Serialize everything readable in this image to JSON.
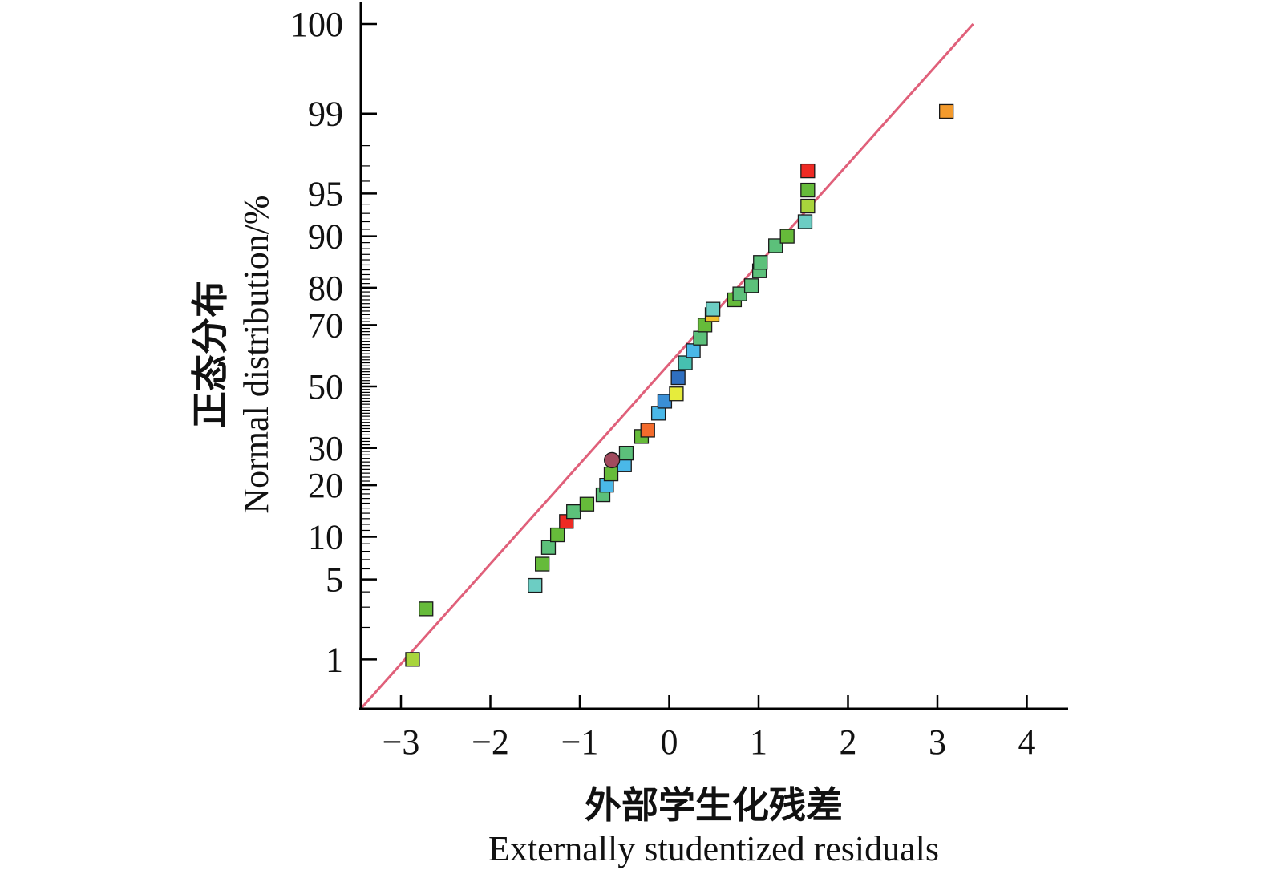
{
  "chart_data": {
    "type": "scatter",
    "title": "",
    "xlabel_cn": "外部学生化残差",
    "xlabel": "Externally studentized residuals",
    "ylabel_cn": "正态分布",
    "ylabel": "Normal distribution/%",
    "xlim": [
      -3.45,
      4.45
    ],
    "ylim": [
      0.3,
      99.9
    ],
    "y_scale": "normal-probability",
    "grid": false,
    "legend": "none",
    "x_ticks": [
      -3,
      -2,
      -1,
      0,
      1,
      2,
      3,
      4
    ],
    "x_tick_labels": [
      "−3",
      "−2",
      "−1",
      "0",
      "1",
      "2",
      "3",
      "4"
    ],
    "y_ticks": [
      1,
      5,
      10,
      20,
      30,
      50,
      70,
      80,
      90,
      95,
      99,
      99.9
    ],
    "y_tick_labels": [
      "1",
      "5",
      "10",
      "20",
      "30",
      "50",
      "70",
      "80",
      "90",
      "95",
      "99",
      "100"
    ],
    "reference_line": {
      "color": "#e0607a",
      "points": [
        [
          -3.45,
          0.3
        ],
        [
          3.4,
          99.9
        ]
      ]
    },
    "series": [
      {
        "marker": "square",
        "points": [
          {
            "x": -2.87,
            "y": 1.0,
            "color": "#a8d43c"
          },
          {
            "x": -2.72,
            "y": 2.9,
            "color": "#66bb3a"
          },
          {
            "x": -1.5,
            "y": 4.5,
            "color": "#6ccdc3"
          },
          {
            "x": -1.42,
            "y": 6.5,
            "color": "#66bb3a"
          },
          {
            "x": -1.35,
            "y": 8.5,
            "color": "#5cc07a"
          },
          {
            "x": -1.25,
            "y": 10.3,
            "color": "#66bb3a"
          },
          {
            "x": -1.15,
            "y": 12.5,
            "color": "#ee2a24"
          },
          {
            "x": -1.07,
            "y": 14.3,
            "color": "#5cc07a"
          },
          {
            "x": -0.92,
            "y": 15.8,
            "color": "#66bb3a"
          },
          {
            "x": -0.74,
            "y": 17.8,
            "color": "#5cc07a"
          },
          {
            "x": -0.7,
            "y": 20.0,
            "color": "#4ab8e8"
          },
          {
            "x": -0.65,
            "y": 22.8,
            "color": "#66bb3a"
          },
          {
            "x": -0.5,
            "y": 25.2,
            "color": "#4ab8e8"
          },
          {
            "x": -0.48,
            "y": 28.5,
            "color": "#5cc07a"
          },
          {
            "x": -0.31,
            "y": 33.5,
            "color": "#66bb3a"
          },
          {
            "x": -0.24,
            "y": 35.5,
            "color": "#f36b2c"
          },
          {
            "x": -0.12,
            "y": 41.0,
            "color": "#4ab8e8"
          },
          {
            "x": -0.05,
            "y": 45.0,
            "color": "#3a8fd6"
          },
          {
            "x": 0.08,
            "y": 47.5,
            "color": "#e6ec3c"
          },
          {
            "x": 0.1,
            "y": 53.0,
            "color": "#2f6fc0"
          },
          {
            "x": 0.18,
            "y": 58.0,
            "color": "#46c0b0"
          },
          {
            "x": 0.27,
            "y": 62.0,
            "color": "#4ab8e8"
          },
          {
            "x": 0.35,
            "y": 66.0,
            "color": "#5cc07a"
          },
          {
            "x": 0.4,
            "y": 70.0,
            "color": "#66bb3a"
          },
          {
            "x": 0.48,
            "y": 73.0,
            "color": "#f0c02c"
          },
          {
            "x": 0.49,
            "y": 74.5,
            "color": "#6ccdc3"
          },
          {
            "x": 0.73,
            "y": 77.0,
            "color": "#66bb3a"
          },
          {
            "x": 0.79,
            "y": 78.5,
            "color": "#5cc07a"
          },
          {
            "x": 0.92,
            "y": 80.5,
            "color": "#5cc07a"
          },
          {
            "x": 1.01,
            "y": 83.8,
            "color": "#5cc07a"
          },
          {
            "x": 1.02,
            "y": 85.5,
            "color": "#5cc07a"
          },
          {
            "x": 1.19,
            "y": 88.5,
            "color": "#5cc07a"
          },
          {
            "x": 1.32,
            "y": 90.0,
            "color": "#66bb3a"
          },
          {
            "x": 1.52,
            "y": 92.0,
            "color": "#6ccdc3"
          },
          {
            "x": 1.55,
            "y": 93.8,
            "color": "#a8d43c"
          },
          {
            "x": 1.55,
            "y": 95.3,
            "color": "#66bb3a"
          },
          {
            "x": 1.55,
            "y": 96.7,
            "color": "#ee2a24"
          },
          {
            "x": 3.1,
            "y": 99.05,
            "color": "#f39a2c"
          }
        ]
      },
      {
        "marker": "circle",
        "points": [
          {
            "x": -0.64,
            "y": 26.5,
            "color": "#a14a5e"
          }
        ]
      }
    ]
  }
}
